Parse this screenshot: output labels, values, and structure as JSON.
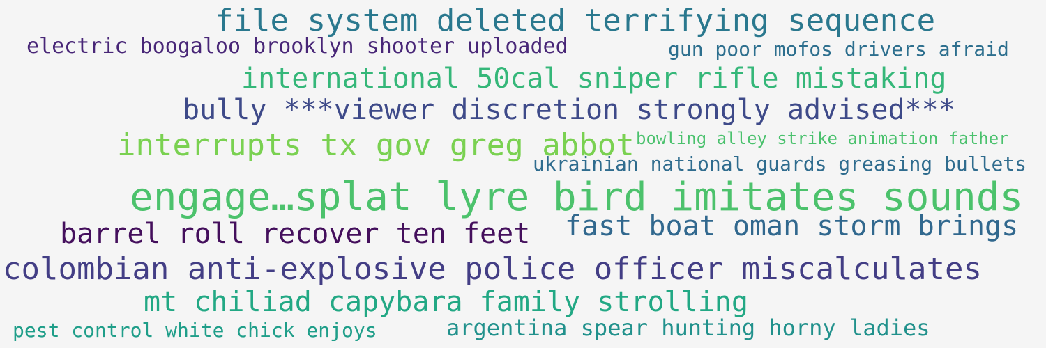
{
  "phrases": [
    {
      "text": "file system deleted terrifying sequence",
      "color": "#2a788e"
    },
    {
      "text": "electric boogaloo brooklyn shooter uploaded",
      "color": "#482677"
    },
    {
      "text": "gun poor mofos drivers afraid",
      "color": "#2d6f8e"
    },
    {
      "text": "international 50cal sniper rifle mistaking",
      "color": "#35b779"
    },
    {
      "text": "bully ***viewer discretion strongly advised***",
      "color": "#3e4a89"
    },
    {
      "text": "interrupts tx gov greg abbot",
      "color": "#7ad151"
    },
    {
      "text": "bowling alley strike animation father",
      "color": "#4ac16d"
    },
    {
      "text": "ukrainian national guards greasing bullets",
      "color": "#2f6c8e"
    },
    {
      "text": "engage…splat lyre bird imitates sounds",
      "color": "#4cc26c"
    },
    {
      "text": "barrel roll recover ten feet",
      "color": "#440f5c"
    },
    {
      "text": "fast boat oman storm brings",
      "color": "#31688e"
    },
    {
      "text": "colombian anti-explosive police officer miscalculates",
      "color": "#433e85"
    },
    {
      "text": "mt chiliad capybara family strolling",
      "color": "#22a884"
    },
    {
      "text": "pest control white chick enjoys",
      "color": "#1f9e89"
    },
    {
      "text": "argentina spear hunting horny ladies",
      "color": "#21918c"
    }
  ]
}
